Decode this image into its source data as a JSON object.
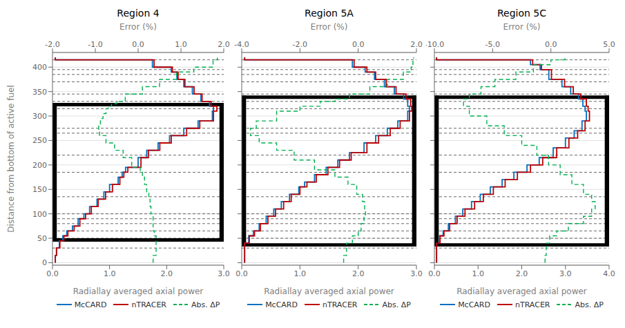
{
  "chart_data": [
    {
      "type": "step",
      "title": "Region 4",
      "x_label": "Radiallay averaged axial power",
      "x2_label": "Error (%)",
      "y_label": "Distance from bottom of active fuel",
      "xlim": [
        0.0,
        3.0
      ],
      "xticks": [
        {
          "value": 0.0,
          "label": "0.0"
        },
        {
          "value": 1.0,
          "label": "1.0"
        },
        {
          "value": 2.0,
          "label": "2.0"
        },
        {
          "value": 3.0,
          "label": "3.0"
        }
      ],
      "x2lim": [
        -2.0,
        2.0
      ],
      "x2ticks": [
        {
          "value": -2.0,
          "label": "-2.0"
        },
        {
          "value": -1.0,
          "label": "-1.0"
        },
        {
          "value": 0.0,
          "label": "0.0"
        },
        {
          "value": 1.0,
          "label": "1.0"
        },
        {
          "value": 2.0,
          "label": "2.0"
        }
      ],
      "ylim": [
        -5,
        430
      ],
      "yticks": [
        0,
        50,
        100,
        150,
        200,
        250,
        300,
        350,
        400
      ],
      "grid": "y",
      "legend": "bottom",
      "hlines": [
        30,
        50,
        65,
        80,
        90,
        100,
        135,
        185,
        220,
        265,
        275,
        315,
        330,
        345,
        370,
        385,
        395,
        415
      ],
      "waba": {
        "y_bottom": 50,
        "y_top": 320
      },
      "series": [
        {
          "name": "McCARD",
          "color": "#0070C0",
          "line_style": "solid",
          "x": [
            0.05,
            0.05,
            0.07,
            0.12,
            0.18,
            0.25,
            0.35,
            0.45,
            0.55,
            0.65,
            0.78,
            0.9,
            1.0,
            1.15,
            1.22,
            1.28,
            1.5,
            1.65,
            1.85,
            2.05,
            2.3,
            2.55,
            2.8,
            2.82,
            2.75,
            2.6,
            2.45,
            2.3,
            2.18,
            2.08,
            1.75,
            0.05
          ],
          "values": [
            0,
            15,
            30,
            45,
            55,
            65,
            75,
            90,
            100,
            115,
            130,
            145,
            160,
            175,
            185,
            195,
            215,
            230,
            245,
            260,
            275,
            290,
            310,
            320,
            330,
            345,
            360,
            375,
            390,
            400,
            415,
            420
          ]
        },
        {
          "name": "nTRACER",
          "color": "#C00000",
          "line_style": "solid",
          "x": [
            0.05,
            0.05,
            0.07,
            0.13,
            0.2,
            0.27,
            0.38,
            0.48,
            0.58,
            0.68,
            0.8,
            0.93,
            1.05,
            1.18,
            1.25,
            1.32,
            1.55,
            1.68,
            1.88,
            2.08,
            2.35,
            2.58,
            2.82,
            2.88,
            2.78,
            2.62,
            2.48,
            2.32,
            2.2,
            2.1,
            1.78,
            0.05
          ],
          "values": [
            0,
            15,
            30,
            45,
            55,
            65,
            75,
            90,
            100,
            115,
            130,
            145,
            160,
            175,
            185,
            195,
            215,
            230,
            245,
            260,
            275,
            290,
            310,
            320,
            330,
            345,
            360,
            375,
            390,
            400,
            415,
            420
          ]
        },
        {
          "name": "Abs. ΔP",
          "color": "#00B050",
          "line_style": "dashed",
          "axis": "x2",
          "x": [
            0.35,
            0.35,
            0.42,
            0.42,
            0.42,
            0.38,
            0.35,
            0.35,
            0.35,
            0.3,
            0.28,
            0.25,
            0.2,
            0.15,
            0.1,
            0.05,
            -0.15,
            -0.35,
            -0.55,
            -0.75,
            -0.9,
            -0.92,
            -0.88,
            -0.82,
            -0.75,
            -0.7,
            -0.62,
            -0.5,
            -0.3,
            0.1,
            0.5,
            0.9,
            1.3,
            1.75,
            1.85
          ],
          "values": [
            0,
            15,
            30,
            45,
            55,
            65,
            75,
            90,
            100,
            115,
            130,
            145,
            160,
            175,
            185,
            195,
            215,
            230,
            245,
            260,
            270,
            280,
            295,
            305,
            315,
            320,
            325,
            330,
            345,
            360,
            375,
            390,
            400,
            415,
            420
          ]
        }
      ]
    },
    {
      "type": "step",
      "title": "Region 5A",
      "x_label": "Radiallay averaged axial power",
      "x2_label": "Error (%)",
      "xlim": [
        0.0,
        3.0
      ],
      "xticks": [
        {
          "value": 0.0,
          "label": "0.0"
        },
        {
          "value": 1.0,
          "label": "1.0"
        },
        {
          "value": 2.0,
          "label": "2.0"
        },
        {
          "value": 3.0,
          "label": "3.0"
        }
      ],
      "x2lim": [
        -4.0,
        2.0
      ],
      "x2ticks": [
        {
          "value": -4.0,
          "label": "-4.0"
        },
        {
          "value": -2.0,
          "label": "-2.0"
        },
        {
          "value": 0.0,
          "label": "0.0"
        },
        {
          "value": 2.0,
          "label": "2.0"
        }
      ],
      "ylim": [
        -5,
        430
      ],
      "yticks": [
        0,
        50,
        100,
        150,
        200,
        250,
        300,
        350,
        400
      ],
      "grid": "y",
      "legend": "bottom",
      "tick_labels": "x",
      "hlines": [
        30,
        50,
        65,
        80,
        90,
        100,
        135,
        185,
        220,
        265,
        275,
        315,
        330,
        345,
        370,
        385,
        395,
        415
      ],
      "waba": {
        "y_bottom": 40,
        "y_top": 335
      },
      "series": [
        {
          "name": "McCARD",
          "color": "#0070C0",
          "line_style": "solid",
          "x": [
            0.05,
            0.05,
            0.05,
            0.12,
            0.2,
            0.3,
            0.42,
            0.55,
            0.68,
            0.82,
            0.98,
            1.08,
            1.25,
            1.45,
            1.65,
            1.85,
            2.1,
            2.3,
            2.5,
            2.68,
            2.85,
            2.88,
            2.85,
            2.78,
            2.62,
            2.45,
            2.28,
            2.12,
            1.9,
            0.05
          ],
          "values": [
            0,
            15,
            40,
            55,
            65,
            80,
            95,
            110,
            125,
            140,
            155,
            165,
            180,
            195,
            210,
            225,
            245,
            260,
            275,
            290,
            310,
            320,
            335,
            345,
            360,
            375,
            390,
            400,
            415,
            420
          ]
        },
        {
          "name": "nTRACER",
          "color": "#C00000",
          "line_style": "solid",
          "x": [
            0.05,
            0.05,
            0.05,
            0.13,
            0.22,
            0.32,
            0.45,
            0.58,
            0.72,
            0.85,
            1.0,
            1.12,
            1.28,
            1.48,
            1.68,
            1.88,
            2.15,
            2.35,
            2.55,
            2.72,
            2.88,
            2.92,
            2.9,
            2.82,
            2.65,
            2.48,
            2.3,
            2.15,
            1.93,
            0.05
          ],
          "values": [
            0,
            15,
            40,
            55,
            65,
            80,
            95,
            110,
            125,
            140,
            155,
            165,
            180,
            195,
            210,
            225,
            245,
            260,
            275,
            290,
            310,
            320,
            335,
            345,
            360,
            375,
            390,
            400,
            415,
            420
          ]
        },
        {
          "name": "Abs. ΔP",
          "color": "#00B050",
          "line_style": "dashed",
          "axis": "x2",
          "x": [
            -0.5,
            -0.5,
            -0.4,
            -0.2,
            0.0,
            0.1,
            0.2,
            0.25,
            0.22,
            0.15,
            -0.05,
            -0.35,
            -0.8,
            -1.5,
            -2.2,
            -2.8,
            -3.4,
            -3.7,
            -3.5,
            -2.8,
            -2.0,
            -1.3,
            -0.8,
            -0.3,
            0.4,
            1.0,
            1.55,
            1.82,
            1.88,
            1.9
          ],
          "values": [
            0,
            15,
            40,
            55,
            65,
            80,
            95,
            110,
            125,
            140,
            160,
            175,
            190,
            210,
            230,
            245,
            260,
            275,
            290,
            310,
            320,
            330,
            335,
            345,
            360,
            375,
            390,
            400,
            415,
            420
          ]
        }
      ]
    },
    {
      "type": "step",
      "title": "Region 5C",
      "x_label": "Radiallay averaged axial power",
      "x2_label": "Error (%)",
      "xlim": [
        0.0,
        4.0
      ],
      "xticks": [
        {
          "value": 0.0,
          "label": "0.0"
        },
        {
          "value": 1.0,
          "label": "1.0"
        },
        {
          "value": 2.0,
          "label": "2.0"
        },
        {
          "value": 3.0,
          "label": "3.0"
        },
        {
          "value": 4.0,
          "label": "4.0"
        }
      ],
      "x2lim": [
        -10.0,
        5.0
      ],
      "x2ticks": [
        {
          "value": -10.0,
          "label": "-10.0"
        },
        {
          "value": -5.0,
          "label": "-5.0"
        },
        {
          "value": 0.0,
          "label": "0.0"
        },
        {
          "value": 5.0,
          "label": "5.0"
        }
      ],
      "ylim": [
        -5,
        430
      ],
      "yticks": [
        0,
        50,
        100,
        150,
        200,
        250,
        300,
        350,
        400
      ],
      "grid": "y",
      "legend": "bottom",
      "tick_labels": "x",
      "hlines": [
        30,
        50,
        65,
        80,
        90,
        100,
        135,
        185,
        220,
        265,
        275,
        315,
        330,
        345,
        370,
        385,
        395,
        415
      ],
      "waba": {
        "y_bottom": 40,
        "y_top": 335
      },
      "series": [
        {
          "name": "McCARD",
          "color": "#0070C0",
          "line_style": "solid",
          "x": [
            0.05,
            0.05,
            0.05,
            0.12,
            0.2,
            0.32,
            0.48,
            0.65,
            0.85,
            1.05,
            1.28,
            1.55,
            1.82,
            2.12,
            2.4,
            2.72,
            3.0,
            3.2,
            3.38,
            3.48,
            3.45,
            3.4,
            3.3,
            3.12,
            2.92,
            2.62,
            2.42,
            2.2,
            0.05
          ],
          "values": [
            0,
            15,
            40,
            55,
            65,
            80,
            95,
            110,
            125,
            140,
            155,
            170,
            185,
            200,
            215,
            235,
            255,
            270,
            290,
            310,
            320,
            335,
            345,
            360,
            375,
            395,
            405,
            415,
            420
          ]
        },
        {
          "name": "nTRACER",
          "color": "#C00000",
          "line_style": "solid",
          "x": [
            0.05,
            0.05,
            0.05,
            0.13,
            0.22,
            0.35,
            0.52,
            0.7,
            0.92,
            1.12,
            1.35,
            1.62,
            1.9,
            2.2,
            2.48,
            2.8,
            3.08,
            3.28,
            3.45,
            3.55,
            3.52,
            3.48,
            3.35,
            3.18,
            2.98,
            2.68,
            2.45,
            2.25,
            0.05
          ],
          "values": [
            0,
            15,
            40,
            55,
            65,
            80,
            95,
            110,
            125,
            140,
            155,
            170,
            185,
            200,
            215,
            235,
            255,
            270,
            290,
            310,
            320,
            335,
            345,
            360,
            375,
            395,
            405,
            415,
            420
          ]
        },
        {
          "name": "Abs. ΔP",
          "color": "#00B050",
          "line_style": "dashed",
          "axis": "x2",
          "x": [
            -0.5,
            -0.5,
            -0.4,
            -0.1,
            0.5,
            1.5,
            2.8,
            3.5,
            3.8,
            3.5,
            2.8,
            1.8,
            0.8,
            -0.2,
            -1.2,
            -2.5,
            -4.0,
            -5.5,
            -7.0,
            -7.5,
            -7.0,
            -6.0,
            -4.8,
            -3.0,
            -1.5,
            0.0,
            1.2
          ],
          "values": [
            0,
            15,
            40,
            55,
            65,
            80,
            95,
            110,
            125,
            140,
            160,
            180,
            200,
            220,
            240,
            260,
            280,
            300,
            320,
            335,
            345,
            360,
            375,
            390,
            405,
            415,
            420
          ]
        }
      ]
    }
  ]
}
